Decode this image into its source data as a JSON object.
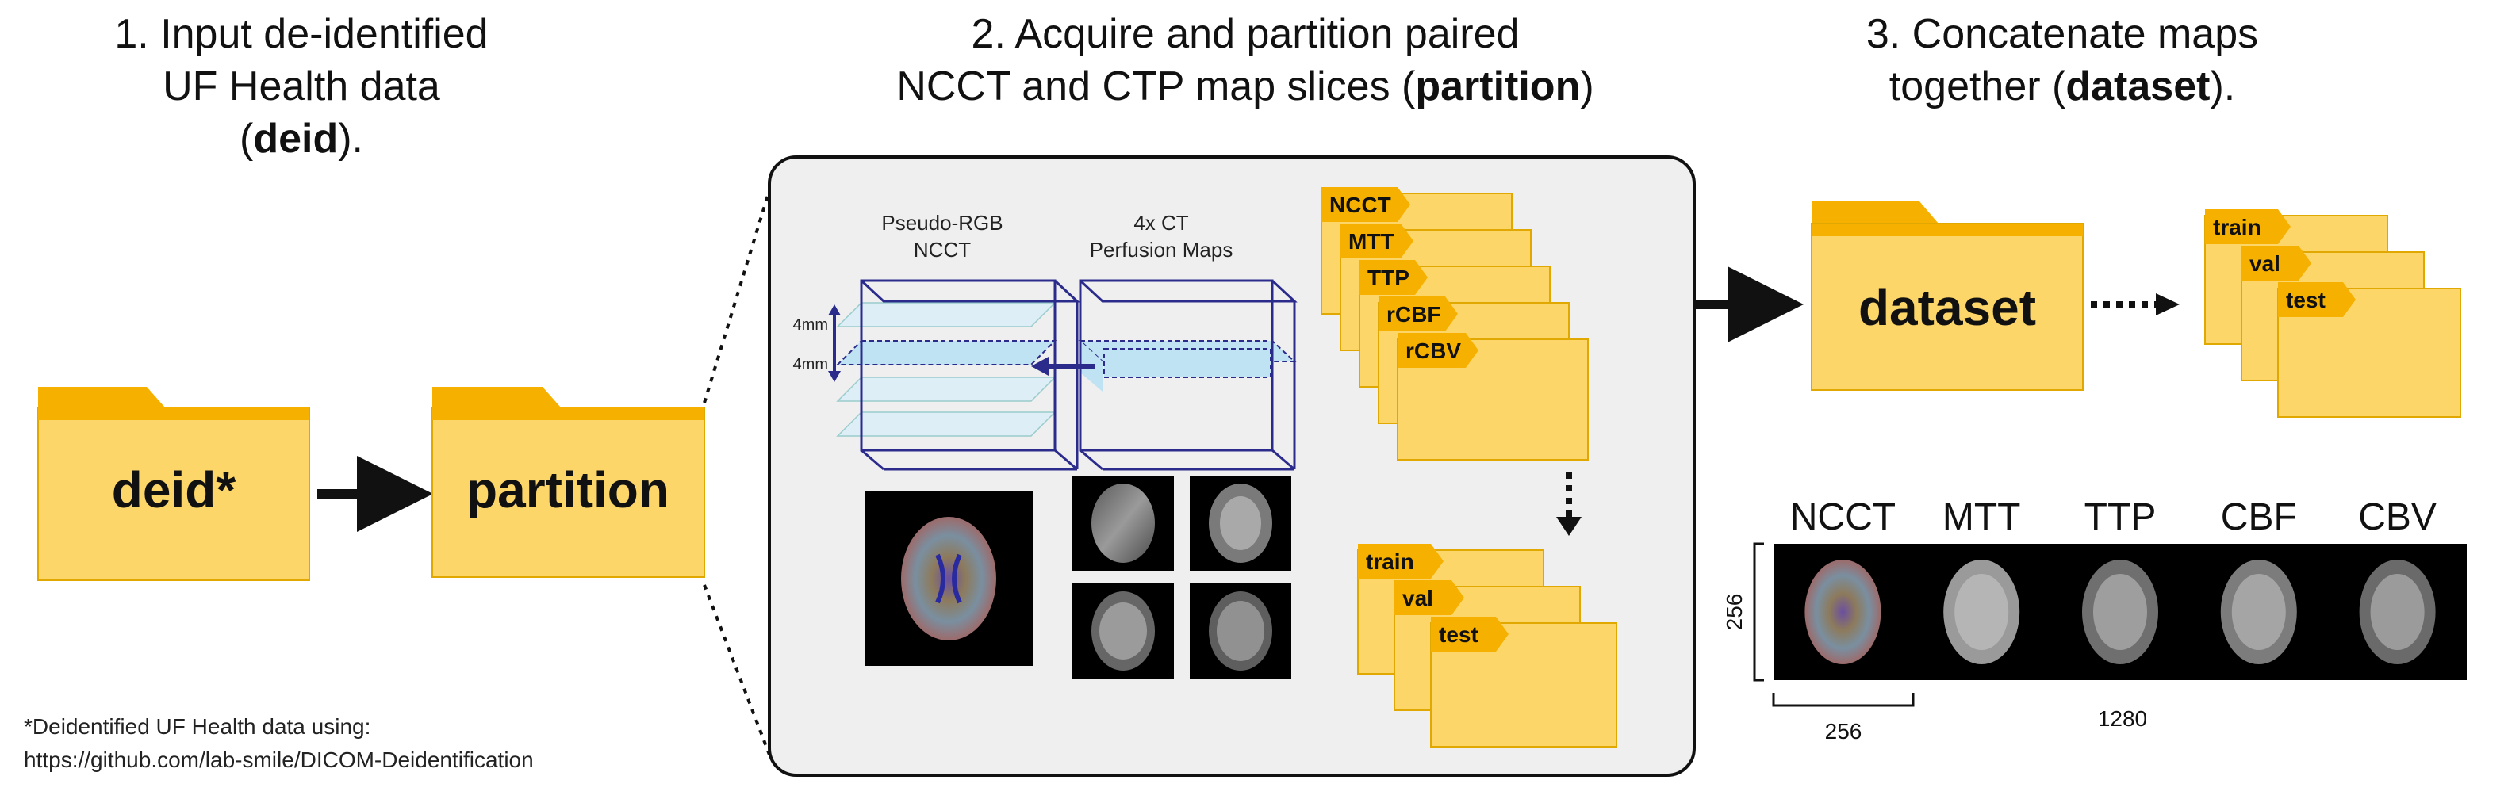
{
  "steps": [
    {
      "line1": "1. Input de-identified",
      "line2_pre": "UF Health data (",
      "line2_bold": "deid",
      "line2_post": ")."
    },
    {
      "line1": "2. Acquire and partition paired",
      "line2_pre": "NCCT and CTP map slices (",
      "line2_bold": "partition",
      "line2_post": ")"
    },
    {
      "line1": "3. Concatenate maps",
      "line2_pre": "together (",
      "line2_bold": "dataset",
      "line2_post": ")."
    }
  ],
  "folders": {
    "deid": "deid*",
    "partition": "partition",
    "dataset": "dataset"
  },
  "volume_labels": {
    "ncct_line1": "Pseudo-RGB",
    "ncct_line2": "NCCT",
    "ctp_line1": "4x CT",
    "ctp_line2": "Perfusion Maps",
    "slice_top": "4mm",
    "slice_bottom": "4mm"
  },
  "map_tabs": [
    "NCCT",
    "MTT",
    "TTP",
    "rCBF",
    "rCBV"
  ],
  "split_tabs": [
    "train",
    "val",
    "test"
  ],
  "concat": {
    "labels": [
      "NCCT",
      "MTT",
      "TTP",
      "CBF",
      "CBV"
    ],
    "height": "256",
    "tile_width": "256",
    "total_width": "1280"
  },
  "footnote": {
    "line1": "*Deidentified UF Health data using:",
    "line2": "https://github.com/lab-smile/DICOM-Deidentification"
  },
  "colors": {
    "folder_body": "#FDD66A",
    "folder_tab": "#F5B000",
    "folder_edge": "#E0A800",
    "panel_bg": "#EFEFEF",
    "cube_edge": "#2B2B8C",
    "slice_fill": "#BFE3F2",
    "arrow": "#111111"
  }
}
